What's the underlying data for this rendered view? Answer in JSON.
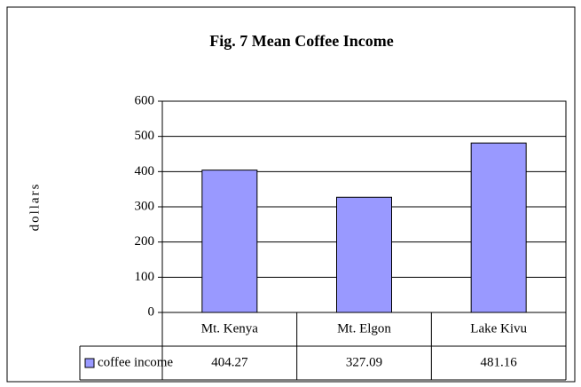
{
  "chart_data": {
    "type": "bar",
    "title": "Fig. 7 Mean Coffee Income",
    "y_label": "dollars",
    "categories": [
      "Mt. Kenya",
      "Mt. Elgon",
      "Lake Kivu"
    ],
    "series": [
      {
        "name": "coffee income",
        "color": "#9999ff",
        "values": [
          404.27,
          327.09,
          481.16
        ]
      }
    ],
    "ylim": [
      0,
      600
    ],
    "yticks": [
      0,
      100,
      200,
      300,
      400,
      500,
      600
    ],
    "grid": true,
    "data_table": true
  }
}
